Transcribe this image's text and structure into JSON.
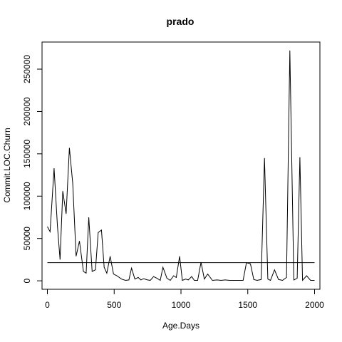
{
  "chart_data": {
    "type": "line",
    "title": "prado",
    "xlabel": "Age.Days",
    "ylabel": "Commit.LOC.Churn",
    "xlim": [
      -40,
      2040
    ],
    "ylim": [
      -10000,
      282000
    ],
    "x_ticks": [
      0,
      500,
      1000,
      1500,
      2000
    ],
    "x_tick_labels": [
      "0",
      "500",
      "1000",
      "1500",
      "2000"
    ],
    "y_ticks": [
      0,
      50000,
      100000,
      150000,
      200000,
      250000
    ],
    "y_tick_labels": [
      "0",
      "50000",
      "100000",
      "150000",
      "200000",
      "250000"
    ],
    "grid": false,
    "reference_line": {
      "y": 21500,
      "x_start": 0,
      "x_end": 2000
    },
    "series": [
      {
        "name": "Commit.LOC.Churn",
        "x": [
          0,
          20,
          50,
          75,
          95,
          115,
          140,
          165,
          190,
          215,
          240,
          270,
          290,
          310,
          335,
          360,
          380,
          405,
          425,
          445,
          470,
          495,
          520,
          555,
          585,
          610,
          630,
          655,
          680,
          700,
          720,
          750,
          770,
          795,
          820,
          845,
          865,
          895,
          920,
          945,
          965,
          990,
          1010,
          1035,
          1055,
          1080,
          1100,
          1125,
          1150,
          1175,
          1200,
          1235,
          1270,
          1300,
          1330,
          1365,
          1395,
          1420,
          1440,
          1465,
          1490,
          1520,
          1545,
          1570,
          1600,
          1625,
          1650,
          1670,
          1700,
          1730,
          1760,
          1790,
          1815,
          1845,
          1870,
          1890,
          1910,
          1940,
          1970,
          2000
        ],
        "y": [
          64000,
          58000,
          133000,
          65000,
          25000,
          106000,
          79000,
          157000,
          115000,
          29000,
          47000,
          11000,
          9000,
          75000,
          11000,
          13000,
          57000,
          60000,
          16000,
          9000,
          29000,
          8000,
          6000,
          2000,
          500,
          1000,
          15000,
          2000,
          4000,
          1000,
          2500,
          1000,
          500,
          5000,
          3000,
          500,
          16000,
          3000,
          500,
          6000,
          4000,
          29000,
          500,
          2000,
          1000,
          5000,
          500,
          500,
          22000,
          2000,
          8000,
          500,
          1000,
          500,
          1000,
          500,
          500,
          500,
          500,
          500,
          21500,
          20000,
          1500,
          500,
          1500,
          145000,
          2000,
          500,
          13000,
          1500,
          500,
          4000,
          272000,
          1000,
          3000,
          146000,
          500,
          6000,
          500,
          500
        ]
      }
    ]
  }
}
